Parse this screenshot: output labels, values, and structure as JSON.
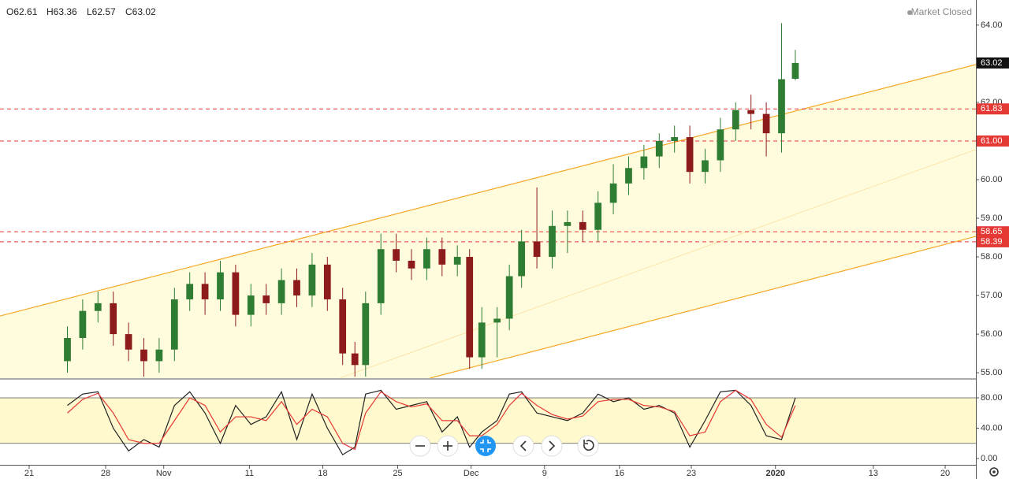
{
  "header": {
    "ohlc": [
      "O62.61",
      "H63.36",
      "L62.57",
      "C63.02"
    ],
    "status": "Market Closed"
  },
  "chart_data": [
    {
      "type": "candlestick",
      "x": [
        2.5,
        3.5,
        4.5,
        5.5,
        6.5,
        7.5,
        8.5,
        9.5,
        10.5,
        11.5,
        12.5,
        13.5,
        14.5,
        15.5,
        16.5,
        17.5,
        18.5,
        19.5,
        20.5,
        21.3,
        22,
        23,
        24,
        25,
        26,
        27,
        28,
        28.8,
        29.6,
        30.6,
        31.4,
        32.2,
        33.2,
        34.2,
        35.2,
        36.2,
        37.2,
        38.2,
        39.2,
        40.2,
        41.2,
        42.2,
        43.2,
        44.2,
        45.2,
        46.2,
        47.2,
        48.2,
        49.2,
        50.1
      ],
      "open": [
        55.3,
        55.9,
        56.6,
        56.8,
        56.0,
        55.6,
        55.3,
        55.6,
        56.9,
        57.3,
        56.9,
        57.6,
        56.5,
        57.0,
        56.8,
        57.4,
        57.0,
        57.8,
        56.9,
        55.5,
        55.2,
        56.8,
        58.2,
        57.9,
        57.7,
        58.2,
        57.8,
        58.0,
        55.4,
        56.3,
        56.4,
        57.5,
        58.4,
        58.0,
        58.8,
        58.9,
        58.7,
        59.4,
        59.9,
        60.3,
        60.6,
        61.0,
        61.1,
        60.2,
        60.5,
        61.3,
        61.8,
        61.7,
        61.2,
        62.61
      ],
      "high": [
        56.2,
        56.9,
        57.1,
        57.1,
        56.3,
        55.9,
        55.9,
        57.2,
        57.6,
        57.6,
        57.9,
        57.8,
        57.3,
        57.3,
        57.7,
        57.7,
        58.1,
        58.0,
        57.2,
        55.8,
        57.1,
        58.6,
        58.6,
        58.2,
        58.5,
        58.5,
        58.3,
        58.2,
        56.7,
        56.7,
        57.8,
        58.7,
        59.8,
        59.2,
        59.2,
        59.2,
        59.7,
        60.4,
        60.6,
        60.9,
        61.2,
        61.4,
        61.4,
        60.8,
        61.6,
        62.0,
        62.2,
        62.0,
        64.05,
        63.36
      ],
      "low": [
        55.0,
        55.6,
        56.3,
        55.7,
        55.3,
        54.9,
        55.0,
        55.3,
        56.6,
        56.5,
        56.6,
        56.2,
        56.2,
        56.5,
        56.5,
        56.7,
        56.7,
        56.6,
        55.2,
        54.9,
        54.9,
        56.5,
        57.6,
        57.4,
        57.4,
        57.5,
        57.5,
        55.1,
        55.1,
        55.4,
        56.1,
        57.2,
        57.7,
        57.7,
        58.1,
        58.4,
        58.4,
        59.1,
        59.6,
        60.0,
        60.3,
        60.7,
        59.9,
        59.9,
        60.2,
        61.0,
        61.3,
        60.6,
        60.7,
        62.57
      ],
      "close": [
        55.9,
        56.6,
        56.8,
        56.0,
        55.6,
        55.3,
        55.6,
        56.9,
        57.3,
        56.9,
        57.6,
        56.5,
        57.0,
        56.8,
        57.4,
        57.0,
        57.8,
        56.9,
        55.5,
        55.2,
        56.8,
        58.2,
        57.9,
        57.7,
        58.2,
        57.8,
        58.0,
        55.4,
        56.3,
        56.4,
        57.5,
        58.4,
        58.0,
        58.8,
        58.9,
        58.7,
        59.4,
        59.9,
        60.3,
        60.6,
        61.0,
        61.1,
        60.2,
        60.5,
        61.3,
        61.8,
        61.7,
        61.2,
        62.6,
        63.02
      ],
      "up_color": "#2e7d32",
      "down_color": "#8e1b1b",
      "xlim": [
        -1.907,
        61.907
      ],
      "ylim": [
        54.86,
        64.65
      ],
      "yticks": [
        {
          "value": 55,
          "label": "55.00"
        },
        {
          "value": 56,
          "label": "56.00"
        },
        {
          "value": 57,
          "label": "57.00"
        },
        {
          "value": 58,
          "label": "58.00"
        },
        {
          "value": 59,
          "label": "59.00"
        },
        {
          "value": 60,
          "label": "60.00"
        },
        {
          "value": 61,
          "label": "61.00"
        },
        {
          "value": 62,
          "label": "62.00"
        },
        {
          "value": 63,
          "label": "63.00"
        },
        {
          "value": 64,
          "label": "64.00"
        }
      ],
      "xticks": [
        {
          "value": 0,
          "label": "21"
        },
        {
          "value": 5,
          "label": "28"
        },
        {
          "value": 8.8,
          "label": "Nov"
        },
        {
          "value": 14.4,
          "label": "11"
        },
        {
          "value": 19.2,
          "label": "18"
        },
        {
          "value": 24.1,
          "label": "25"
        },
        {
          "value": 28.9,
          "label": "Dec"
        },
        {
          "value": 33.7,
          "label": "9"
        },
        {
          "value": 38.6,
          "label": "16"
        },
        {
          "value": 43.3,
          "label": "23"
        },
        {
          "value": 48.8,
          "label": "2020"
        },
        {
          "value": 55.2,
          "label": "13"
        },
        {
          "value": 59.9,
          "label": "20"
        }
      ],
      "last_price": {
        "value": 63.02,
        "label": "63.02"
      },
      "levels": [
        {
          "value": 61.83,
          "label": "61.83"
        },
        {
          "value": 61.0,
          "label": "61.00"
        },
        {
          "value": 58.65,
          "label": "58.65"
        },
        {
          "value": 58.39,
          "label": "58.39"
        }
      ],
      "level_color": "#e53935",
      "channel": {
        "color": "#f5a623",
        "upper": [
          [
            -1.907,
            56.47
          ],
          [
            61.907,
            62.98
          ]
        ],
        "middle": [
          [
            20.3,
            54.86
          ],
          [
            61.907,
            60.78
          ]
        ],
        "lower": [
          [
            26.2,
            54.86
          ],
          [
            61.907,
            58.53
          ]
        ]
      }
    },
    {
      "type": "line",
      "x": [
        2.5,
        3.5,
        4.5,
        5.5,
        6.5,
        7.5,
        8.5,
        9.5,
        10.5,
        11.5,
        12.5,
        13.5,
        14.5,
        15.5,
        16.5,
        17.5,
        18.5,
        19.5,
        20.5,
        21.3,
        22,
        23,
        24,
        25,
        26,
        27,
        28,
        28.8,
        29.6,
        30.6,
        31.4,
        32.2,
        33.2,
        34.2,
        35.2,
        36.2,
        37.2,
        38.2,
        39.2,
        40.2,
        41.2,
        42.2,
        43.2,
        44.2,
        45.2,
        46.2,
        47.2,
        48.2,
        49.2,
        50.1
      ],
      "series": [
        {
          "color": "#222222",
          "values": [
            70,
            85,
            88,
            40,
            10,
            25,
            15,
            70,
            88,
            60,
            20,
            70,
            45,
            55,
            88,
            25,
            85,
            40,
            5,
            15,
            85,
            90,
            65,
            70,
            75,
            35,
            55,
            15,
            35,
            50,
            85,
            88,
            60,
            55,
            50,
            60,
            85,
            75,
            80,
            65,
            70,
            60,
            15,
            50,
            88,
            90,
            70,
            30,
            25,
            80
          ]
        },
        {
          "color": "#e53935",
          "values": [
            60,
            78,
            86,
            60,
            25,
            20,
            20,
            50,
            80,
            70,
            35,
            55,
            55,
            50,
            75,
            45,
            65,
            55,
            20,
            12,
            60,
            88,
            75,
            68,
            72,
            50,
            50,
            30,
            30,
            45,
            70,
            86,
            70,
            58,
            52,
            56,
            75,
            78,
            78,
            70,
            68,
            62,
            30,
            35,
            75,
            90,
            78,
            45,
            28,
            70
          ]
        }
      ],
      "band": [
        20,
        80
      ],
      "xlim": [
        -1.907,
        61.907
      ],
      "ylim": [
        -8.3,
        103.9
      ],
      "yticks": [
        {
          "value": 80,
          "label": "80.00"
        },
        {
          "value": 40,
          "label": "40.00"
        },
        {
          "value": 0,
          "label": "0.00"
        }
      ]
    }
  ]
}
